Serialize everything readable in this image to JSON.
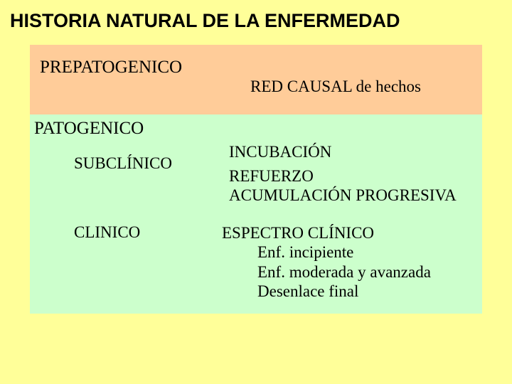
{
  "colors": {
    "background": "#ffff99",
    "prepatogenic_box": "#ffcc99",
    "patogenic_box": "#ccffcc",
    "text": "#000000"
  },
  "title": "HISTORIA NATURAL DE LA ENFERMEDAD",
  "prepatogenic": {
    "heading": "PREPATOGENICO",
    "detail": "RED CAUSAL de hechos"
  },
  "patogenic": {
    "heading": "PATOGENICO",
    "subclinico": {
      "label": "SUBCLÍNICO",
      "items": {
        "a": "INCUBACIÓN",
        "b": "REFUERZO",
        "c": "ACUMULACIÓN PROGRESIVA"
      }
    },
    "clinico": {
      "label": "CLINICO",
      "header": "ESPECTRO CLÍNICO",
      "items": {
        "a": "Enf. incipiente",
        "b": "Enf. moderada y avanzada",
        "c": "Desenlace final"
      }
    }
  }
}
